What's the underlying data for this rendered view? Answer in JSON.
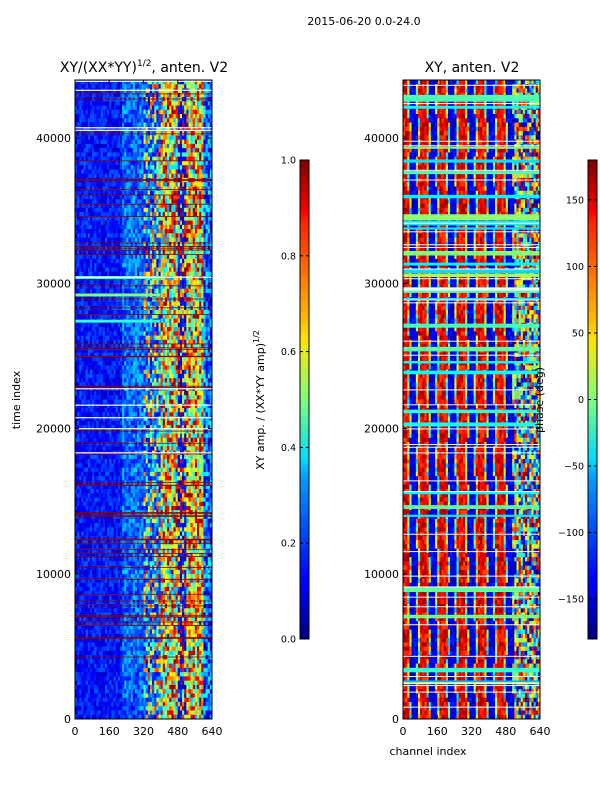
{
  "chart_data": {
    "suptitle": "2015-06-20 0.0-24.0",
    "panels": [
      {
        "type": "heatmap",
        "title_main": "XY/(XX*YY)",
        "title_exp": "1/2",
        "title_tail": ", anten. V2",
        "xlabel": "",
        "ylabel": "time index",
        "xlim": [
          0,
          640
        ],
        "ylim": [
          0,
          44000
        ],
        "xticks": [
          "0",
          "160",
          "320",
          "480",
          "640"
        ],
        "yticks": [
          "0",
          "10000",
          "20000",
          "30000",
          "40000"
        ],
        "colormap": "jet",
        "colorbar": {
          "label_main": "XY amp. / (XX*YY amp)",
          "label_exp": "1/2",
          "range": [
            0.0,
            1.0
          ],
          "ticks": [
            "0.0",
            "0.2",
            "0.4",
            "0.6",
            "0.8",
            "1.0"
          ]
        }
      },
      {
        "type": "heatmap",
        "title": "XY, anten. V2",
        "xlabel": "channel index",
        "ylabel": "",
        "xlim": [
          0,
          640
        ],
        "ylim": [
          0,
          44000
        ],
        "xticks": [
          "0",
          "160",
          "320",
          "480",
          "640"
        ],
        "yticks": [
          "0",
          "10000",
          "20000",
          "30000",
          "40000"
        ],
        "colormap": "jet",
        "colorbar": {
          "label": "phase (deg)",
          "range": [
            -180,
            180
          ],
          "ticks": [
            "−150",
            "−100",
            "−50",
            "0",
            "50",
            "100",
            "150"
          ]
        }
      }
    ]
  }
}
